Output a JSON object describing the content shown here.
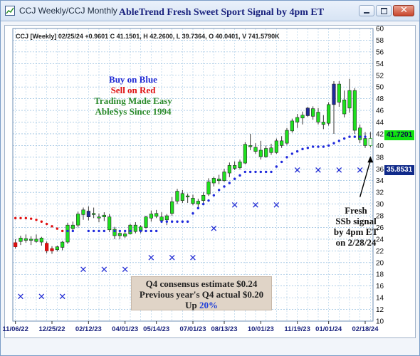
{
  "window": {
    "title": "CCJ Weekly/CCJ Monthly",
    "controls": [
      "minimize-icon",
      "maximize-icon",
      "close-icon"
    ]
  },
  "chart_title": "AbleTrend Fresh Sweet Sport Signal by 4pm ET",
  "info_line": "CCJ [Weekly] 02/25/24  +0.9601 C 41.1501, H 42.2600, L 39.7364, O 40.0401, V 741.5790K",
  "legend": {
    "buy": "Buy on Blue",
    "sell": "Sell on Red",
    "tagline": "Trading Made Easy",
    "since": "AbleSys Since 1994"
  },
  "estimate": {
    "line1": "Q4 consensus estimate $0.24",
    "line2": "Previous year's Q4 actual $0.20",
    "up_prefix": "Up",
    "up_pct": "20%"
  },
  "fresh_note": [
    "Fresh",
    "SSb signal",
    "by 4pm ET",
    "on 2/28/24"
  ],
  "price_tags": {
    "current": "41.7201",
    "stop": "35.8531"
  },
  "colors": {
    "up_candle": "#1ee01e",
    "down_candle": "#1f2a9a",
    "sell_dots": "#e01010",
    "buy_dots": "#1f2adc",
    "bg": "#ffffff",
    "grid": "#7fb0d8"
  },
  "chart_data": {
    "type": "candlestick",
    "title": "AbleTrend Fresh Sweet Sport Signal by 4pm ET",
    "y_axis_side": "right",
    "ylim": [
      10,
      60
    ],
    "y_ticks": [
      10,
      12,
      14,
      16,
      18,
      20,
      22,
      24,
      26,
      28,
      30,
      32,
      34,
      36,
      38,
      40,
      42,
      44,
      46,
      48,
      50,
      52,
      54,
      56,
      58,
      60
    ],
    "x_labels": [
      "11/06/22",
      "12/25/22",
      "02/12/23",
      "04/01/23",
      "05/14/23",
      "07/01/23",
      "08/13/23",
      "10/01/23",
      "11/19/23",
      "01/01/24",
      "02/18/24"
    ],
    "x_label_index": [
      0,
      7,
      14,
      21,
      27,
      34,
      40,
      47,
      54,
      60,
      67
    ],
    "grid": true,
    "candles": [
      {
        "o": 23.4,
        "h": 24.0,
        "l": 22.4,
        "c": 22.7,
        "col": "r"
      },
      {
        "o": 23.6,
        "h": 24.6,
        "l": 23.0,
        "c": 24.2,
        "col": "g"
      },
      {
        "o": 24.1,
        "h": 24.8,
        "l": 23.4,
        "c": 23.8,
        "col": "g"
      },
      {
        "o": 23.8,
        "h": 24.5,
        "l": 23.0,
        "c": 24.0,
        "col": "g"
      },
      {
        "o": 24.0,
        "h": 24.8,
        "l": 23.4,
        "c": 23.6,
        "col": "g"
      },
      {
        "o": 23.5,
        "h": 24.4,
        "l": 22.9,
        "c": 24.2,
        "col": "g"
      },
      {
        "o": 23.3,
        "h": 23.6,
        "l": 21.6,
        "c": 22.0,
        "col": "r"
      },
      {
        "o": 22.0,
        "h": 22.8,
        "l": 21.5,
        "c": 22.4,
        "col": "r"
      },
      {
        "o": 22.2,
        "h": 22.9,
        "l": 21.9,
        "c": 22.7,
        "col": "g"
      },
      {
        "o": 22.6,
        "h": 23.7,
        "l": 22.1,
        "c": 23.5,
        "col": "g"
      },
      {
        "o": 23.5,
        "h": 26.8,
        "l": 23.2,
        "c": 26.4,
        "col": "g"
      },
      {
        "o": 26.4,
        "h": 27.0,
        "l": 25.4,
        "c": 25.8,
        "col": "g"
      },
      {
        "o": 26.4,
        "h": 28.7,
        "l": 26.0,
        "c": 28.3,
        "col": "g"
      },
      {
        "o": 28.2,
        "h": 29.4,
        "l": 27.3,
        "c": 29.0,
        "col": "g"
      },
      {
        "o": 27.8,
        "h": 29.6,
        "l": 27.2,
        "c": 28.8,
        "col": "b"
      },
      {
        "o": 28.2,
        "h": 29.4,
        "l": 27.6,
        "c": 28.4,
        "col": "g"
      },
      {
        "o": 27.8,
        "h": 28.4,
        "l": 26.9,
        "c": 27.7,
        "col": "g"
      },
      {
        "o": 27.8,
        "h": 28.6,
        "l": 27.1,
        "c": 28.1,
        "col": "g"
      },
      {
        "o": 27.8,
        "h": 28.3,
        "l": 25.2,
        "c": 25.6,
        "col": "g"
      },
      {
        "o": 25.7,
        "h": 26.1,
        "l": 24.0,
        "c": 24.6,
        "col": "g"
      },
      {
        "o": 24.6,
        "h": 25.4,
        "l": 24.0,
        "c": 25.0,
        "col": "g"
      },
      {
        "o": 24.9,
        "h": 25.5,
        "l": 24.2,
        "c": 24.5,
        "col": "g"
      },
      {
        "o": 24.9,
        "h": 26.6,
        "l": 24.8,
        "c": 26.4,
        "col": "g"
      },
      {
        "o": 26.4,
        "h": 26.9,
        "l": 25.0,
        "c": 25.3,
        "col": "g"
      },
      {
        "o": 25.4,
        "h": 26.4,
        "l": 25.0,
        "c": 26.1,
        "col": "g"
      },
      {
        "o": 26.0,
        "h": 28.0,
        "l": 25.8,
        "c": 27.8,
        "col": "g"
      },
      {
        "o": 27.6,
        "h": 28.9,
        "l": 27.0,
        "c": 28.3,
        "col": "g"
      },
      {
        "o": 28.4,
        "h": 29.0,
        "l": 27.6,
        "c": 27.9,
        "col": "g"
      },
      {
        "o": 27.8,
        "h": 28.6,
        "l": 26.8,
        "c": 27.2,
        "col": "g"
      },
      {
        "o": 27.3,
        "h": 28.3,
        "l": 26.4,
        "c": 28.0,
        "col": "g"
      },
      {
        "o": 28.4,
        "h": 31.2,
        "l": 28.0,
        "c": 30.4,
        "col": "g"
      },
      {
        "o": 30.5,
        "h": 32.6,
        "l": 30.0,
        "c": 32.2,
        "col": "g"
      },
      {
        "o": 31.8,
        "h": 32.4,
        "l": 30.2,
        "c": 30.6,
        "col": "g"
      },
      {
        "o": 31.2,
        "h": 31.8,
        "l": 30.2,
        "c": 31.4,
        "col": "g"
      },
      {
        "o": 31.0,
        "h": 31.6,
        "l": 29.8,
        "c": 30.1,
        "col": "g"
      },
      {
        "o": 30.0,
        "h": 30.9,
        "l": 29.2,
        "c": 30.5,
        "col": "g"
      },
      {
        "o": 30.6,
        "h": 32.0,
        "l": 30.2,
        "c": 31.5,
        "col": "g"
      },
      {
        "o": 31.7,
        "h": 34.4,
        "l": 31.4,
        "c": 33.8,
        "col": "g"
      },
      {
        "o": 33.6,
        "h": 34.7,
        "l": 33.0,
        "c": 34.4,
        "col": "g"
      },
      {
        "o": 34.3,
        "h": 35.0,
        "l": 33.4,
        "c": 34.0,
        "col": "g"
      },
      {
        "o": 34.0,
        "h": 36.0,
        "l": 33.8,
        "c": 35.5,
        "col": "g"
      },
      {
        "o": 35.3,
        "h": 37.1,
        "l": 34.6,
        "c": 36.6,
        "col": "g"
      },
      {
        "o": 36.6,
        "h": 37.3,
        "l": 35.8,
        "c": 36.1,
        "col": "g"
      },
      {
        "o": 36.2,
        "h": 37.6,
        "l": 35.9,
        "c": 37.2,
        "col": "g"
      },
      {
        "o": 37.0,
        "h": 40.6,
        "l": 36.8,
        "c": 40.2,
        "col": "g"
      },
      {
        "o": 40.0,
        "h": 42.0,
        "l": 39.2,
        "c": 39.8,
        "col": "g"
      },
      {
        "o": 39.7,
        "h": 40.4,
        "l": 38.6,
        "c": 39.0,
        "col": "g"
      },
      {
        "o": 39.2,
        "h": 40.8,
        "l": 37.6,
        "c": 38.1,
        "col": "g"
      },
      {
        "o": 38.1,
        "h": 40.0,
        "l": 37.9,
        "c": 39.5,
        "col": "g"
      },
      {
        "o": 39.6,
        "h": 40.3,
        "l": 38.4,
        "c": 38.8,
        "col": "g"
      },
      {
        "o": 38.8,
        "h": 41.2,
        "l": 38.6,
        "c": 40.8,
        "col": "g"
      },
      {
        "o": 40.8,
        "h": 41.6,
        "l": 39.6,
        "c": 40.0,
        "col": "g"
      },
      {
        "o": 40.4,
        "h": 43.0,
        "l": 40.1,
        "c": 42.6,
        "col": "g"
      },
      {
        "o": 42.5,
        "h": 44.6,
        "l": 42.2,
        "c": 44.2,
        "col": "g"
      },
      {
        "o": 44.0,
        "h": 45.4,
        "l": 43.0,
        "c": 44.8,
        "col": "g"
      },
      {
        "o": 44.7,
        "h": 45.8,
        "l": 43.6,
        "c": 45.2,
        "col": "g"
      },
      {
        "o": 46.4,
        "h": 46.6,
        "l": 44.9,
        "c": 45.1,
        "col": "b"
      },
      {
        "o": 45.0,
        "h": 46.7,
        "l": 44.4,
        "c": 46.3,
        "col": "g"
      },
      {
        "o": 45.7,
        "h": 46.4,
        "l": 43.6,
        "c": 44.0,
        "col": "g"
      },
      {
        "o": 44.0,
        "h": 45.2,
        "l": 42.8,
        "c": 43.6,
        "col": "g"
      },
      {
        "o": 43.8,
        "h": 47.4,
        "l": 43.4,
        "c": 47.0,
        "col": "g"
      },
      {
        "o": 47.0,
        "h": 51.0,
        "l": 42.0,
        "c": 50.5,
        "col": "b"
      },
      {
        "o": 50.5,
        "h": 51.0,
        "l": 46.6,
        "c": 47.4,
        "col": "g"
      },
      {
        "o": 47.8,
        "h": 49.4,
        "l": 44.8,
        "c": 45.4,
        "col": "g"
      },
      {
        "o": 46.4,
        "h": 51.4,
        "l": 45.6,
        "c": 49.4,
        "col": "g"
      },
      {
        "o": 49.4,
        "h": 49.8,
        "l": 42.0,
        "c": 42.6,
        "col": "g"
      },
      {
        "o": 43.0,
        "h": 43.6,
        "l": 40.4,
        "c": 41.0,
        "col": "g"
      },
      {
        "o": 41.2,
        "h": 42.3,
        "l": 39.6,
        "c": 40.0,
        "col": "g"
      },
      {
        "o": 40.0,
        "h": 42.3,
        "l": 39.7,
        "c": 41.2,
        "col": "w"
      }
    ],
    "sell_stop_dots": [
      {
        "i": 0,
        "v": 27.6
      },
      {
        "i": 1,
        "v": 27.6
      },
      {
        "i": 2,
        "v": 27.6
      },
      {
        "i": 3,
        "v": 27.5
      },
      {
        "i": 4,
        "v": 27.3
      },
      {
        "i": 5,
        "v": 27.0
      },
      {
        "i": 6,
        "v": 26.6
      },
      {
        "i": 7,
        "v": 26.2
      },
      {
        "i": 8,
        "v": 25.8
      },
      {
        "i": 9,
        "v": 25.4
      }
    ],
    "buy_stop_dots": [
      {
        "i": 10,
        "v": 25.4
      },
      {
        "i": 11,
        "v": 25.4
      },
      {
        "i": 14,
        "v": 25.4
      },
      {
        "i": 15,
        "v": 25.4
      },
      {
        "i": 16,
        "v": 25.4
      },
      {
        "i": 17,
        "v": 25.4
      },
      {
        "i": 19,
        "v": 25.4
      },
      {
        "i": 20,
        "v": 25.4
      },
      {
        "i": 21,
        "v": 25.4
      },
      {
        "i": 22,
        "v": 25.4
      },
      {
        "i": 24,
        "v": 25.4
      },
      {
        "i": 25,
        "v": 25.4
      },
      {
        "i": 26,
        "v": 25.4
      },
      {
        "i": 27,
        "v": 25.4
      },
      {
        "i": 28,
        "v": 27.0
      },
      {
        "i": 29,
        "v": 27.0
      },
      {
        "i": 30,
        "v": 27.0
      },
      {
        "i": 31,
        "v": 27.0
      },
      {
        "i": 32,
        "v": 27.0
      },
      {
        "i": 33,
        "v": 27.0
      },
      {
        "i": 34,
        "v": 28.4
      },
      {
        "i": 35,
        "v": 29.3
      },
      {
        "i": 36,
        "v": 30.0
      },
      {
        "i": 37,
        "v": 30.6
      },
      {
        "i": 38,
        "v": 31.5
      },
      {
        "i": 39,
        "v": 32.4
      },
      {
        "i": 40,
        "v": 33.0
      },
      {
        "i": 41,
        "v": 33.6
      },
      {
        "i": 42,
        "v": 34.3
      },
      {
        "i": 43,
        "v": 34.9
      },
      {
        "i": 44,
        "v": 35.5
      },
      {
        "i": 45,
        "v": 35.5
      },
      {
        "i": 46,
        "v": 35.5
      },
      {
        "i": 47,
        "v": 35.5
      },
      {
        "i": 48,
        "v": 35.5
      },
      {
        "i": 49,
        "v": 35.5
      },
      {
        "i": 50,
        "v": 36.4
      },
      {
        "i": 51,
        "v": 37.2
      },
      {
        "i": 52,
        "v": 38.0
      },
      {
        "i": 53,
        "v": 38.6
      },
      {
        "i": 54,
        "v": 39.0
      },
      {
        "i": 55,
        "v": 39.4
      },
      {
        "i": 56,
        "v": 39.6
      },
      {
        "i": 57,
        "v": 39.8
      },
      {
        "i": 58,
        "v": 39.8
      },
      {
        "i": 59,
        "v": 39.8
      },
      {
        "i": 60,
        "v": 40.0
      },
      {
        "i": 61,
        "v": 40.4
      },
      {
        "i": 62,
        "v": 40.8
      },
      {
        "i": 63,
        "v": 41.2
      },
      {
        "i": 64,
        "v": 41.5
      },
      {
        "i": 65,
        "v": 41.5
      },
      {
        "i": 66,
        "v": 41.5
      },
      {
        "i": 67,
        "v": 41.5
      }
    ],
    "x_markers": [
      {
        "i": 1,
        "v": 14.2
      },
      {
        "i": 5,
        "v": 14.2
      },
      {
        "i": 9,
        "v": 14.2
      },
      {
        "i": 13,
        "v": 18.8
      },
      {
        "i": 17,
        "v": 18.8
      },
      {
        "i": 21,
        "v": 18.8
      },
      {
        "i": 26,
        "v": 20.8
      },
      {
        "i": 30,
        "v": 20.8
      },
      {
        "i": 34,
        "v": 20.8
      },
      {
        "i": 38,
        "v": 25.8
      },
      {
        "i": 42,
        "v": 29.8
      },
      {
        "i": 46,
        "v": 29.8
      },
      {
        "i": 50,
        "v": 29.8
      },
      {
        "i": 54,
        "v": 35.8
      },
      {
        "i": 58,
        "v": 35.8
      },
      {
        "i": 62,
        "v": 35.8
      },
      {
        "i": 66,
        "v": 35.8
      }
    ],
    "arrow": {
      "from": {
        "i": 66,
        "v": 31.2
      },
      "to": {
        "i": 68,
        "v": 38.2
      }
    }
  }
}
